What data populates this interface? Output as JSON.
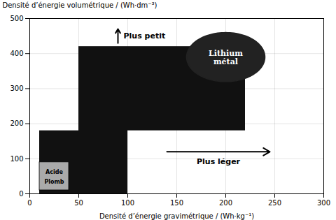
{
  "chart_data": {
    "type": "rect",
    "xlabel": "Densité d’énergie gravimétrique / (Wh·kg⁻¹)",
    "ylabel": "Densité d’énergie volumétrique / (Wh·dm⁻³)",
    "xlim": [
      0,
      300
    ],
    "ylim": [
      0,
      500
    ],
    "xticks": [
      0,
      50,
      100,
      150,
      200,
      250,
      300
    ],
    "yticks": [
      0,
      100,
      200,
      300,
      400,
      500
    ],
    "grid": true,
    "color": "#111111",
    "blocks": [
      {
        "x": 10,
        "y": 0,
        "w": 90,
        "h": 180
      },
      {
        "x": 50,
        "y": 0,
        "w": 50,
        "h": 420
      },
      {
        "x": 100,
        "y": 180,
        "w": 120,
        "h": 240
      }
    ],
    "plomb_box": {
      "x": 10,
      "y": 10,
      "w": 30,
      "h": 80,
      "color": "#aaaaaa",
      "labels": [
        "Acide",
        "Plomb"
      ]
    },
    "ellipse": {
      "cx": 200,
      "cy": 390,
      "rx": 40,
      "ry": 70,
      "color": "#222222",
      "label": "Lithium\nmétal"
    },
    "annotations": [
      {
        "type": "arrow",
        "x1": 90,
        "y1": 430,
        "x2": 90,
        "y2": 470,
        "label": "Plus petit"
      },
      {
        "type": "arrow",
        "x1": 140,
        "y1": 120,
        "x2": 245,
        "y2": 120,
        "label": "Plus léger"
      }
    ]
  }
}
